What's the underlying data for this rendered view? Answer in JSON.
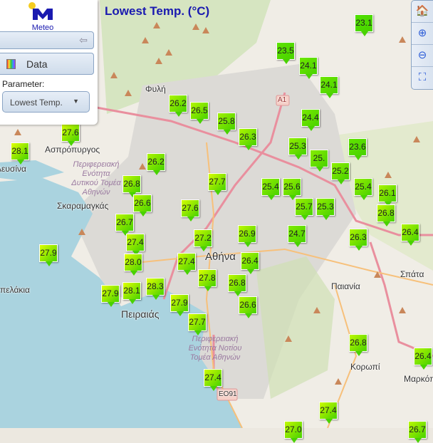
{
  "header": {
    "title": "Lowest Temp. (°C)"
  },
  "logo": {
    "text": "Meteo"
  },
  "panel": {
    "data_label": "Data",
    "parameter_label": "Parameter:",
    "parameter_value": "Lowest Temp."
  },
  "tools": [
    {
      "icon": "home-icon"
    },
    {
      "icon": "zoom-in-icon"
    },
    {
      "icon": "zoom-out-icon"
    },
    {
      "icon": "zoom-extent-icon"
    }
  ],
  "places": [
    "Φυλή",
    "Ασπρόπυργος",
    "Ελευσίνα",
    "Σκαραμαγκάς",
    "Αθήνα",
    "Πειραιάς",
    "Παιανία",
    "Σπάτα",
    "Κορωπί",
    "Μαρκόπουλο",
    "πελάκια"
  ],
  "region_labels": [
    "Περιφερειακή Ενότητα Δυτικού Τομέα Αθηνών",
    "Περιφερειακή Ενότητα Νοτίου Τομέα Αθηνών"
  ],
  "road_labels": [
    "A1",
    "EO91"
  ],
  "stations": [
    "23.1",
    "23.5",
    "24.1",
    "24.1",
    "26.2",
    "26.5",
    "25.8",
    "26.3",
    "24.4",
    "27.6",
    "28.1",
    "25.3",
    "23.6",
    "25.",
    "25.2",
    "26.2",
    "27.7",
    "25.4",
    "25.4",
    "25.6",
    "26.8",
    "26.6",
    "25.7",
    "25.3",
    "26.1",
    "26.8",
    "26.7",
    "27.6",
    "27.4",
    "26.4",
    "24.7",
    "26.9",
    "26.3",
    "27.2",
    "27.9",
    "28.0",
    "27.4",
    "26.4",
    "27.8",
    "26.8",
    "28.3",
    "28.1",
    "27.9",
    "26.6",
    "27.9",
    "27.7",
    "26.8",
    "26.4",
    "27.4",
    "27.4",
    "27.0",
    "26.7"
  ],
  "colors": {
    "low": "#4ee000",
    "high": "#e0ff00",
    "title": "#1a1ab0",
    "sea": "#aad3df",
    "land": "#f2efe9"
  }
}
